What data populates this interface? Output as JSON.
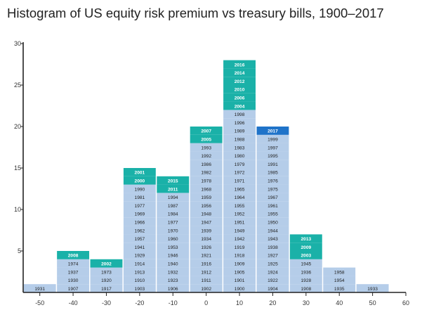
{
  "title": "Histogram of US equity risk premium vs treasury bills, 1900–2017",
  "chart_data": {
    "type": "bar",
    "title": "Histogram of US equity risk premium vs treasury bills, 1900–2017",
    "xlabel": "",
    "ylabel": "",
    "xlim": [
      -55,
      60
    ],
    "ylim": [
      0,
      30
    ],
    "x_ticks": [
      "-50",
      "-40",
      "-30",
      "-20",
      "-10",
      "0",
      "10",
      "20",
      "30",
      "40",
      "50",
      "60"
    ],
    "y_ticks": [
      "5",
      "10",
      "15",
      "20",
      "25",
      "30"
    ],
    "colors": {
      "historical_year": "#b5cde9",
      "this_century_year": "#1ab1a8",
      "latest_year": "#1f73c9"
    },
    "bins": [
      {
        "range": [
          -55,
          -45
        ],
        "years": [
          "1931"
        ]
      },
      {
        "range": [
          -45,
          -35
        ],
        "years": [
          "1907",
          "1930",
          "1937",
          "1974",
          "2008"
        ]
      },
      {
        "range": [
          -35,
          -25
        ],
        "years": [
          "1917",
          "1920",
          "1973",
          "2002"
        ]
      },
      {
        "range": [
          -25,
          -15
        ],
        "years": [
          "1903",
          "1910",
          "1913",
          "1914",
          "1929",
          "1941",
          "1957",
          "1962",
          "1966",
          "1969",
          "1977",
          "1981",
          "1990",
          "2000",
          "2001"
        ]
      },
      {
        "range": [
          -15,
          -5
        ],
        "years": [
          "1906",
          "1923",
          "1932",
          "1940",
          "1946",
          "1953",
          "1960",
          "1970",
          "1977",
          "1984",
          "1987",
          "1994",
          "2011",
          "2015"
        ]
      },
      {
        "range": [
          -5,
          5
        ],
        "years": [
          "1902",
          "1911",
          "1912",
          "1916",
          "1921",
          "1926",
          "1934",
          "1939",
          "1947",
          "1948",
          "1956",
          "1959",
          "1968",
          "1978",
          "1982",
          "1986",
          "1992",
          "1993",
          "2005",
          "2007"
        ]
      },
      {
        "range": [
          5,
          15
        ],
        "years": [
          "1900",
          "1901",
          "1905",
          "1909",
          "1918",
          "1919",
          "1942",
          "1949",
          "1951",
          "1952",
          "1955",
          "1964",
          "1965",
          "1971",
          "1972",
          "1979",
          "1980",
          "1983",
          "1988",
          "1989",
          "1996",
          "1998",
          "2004",
          "2006",
          "2010",
          "2012",
          "2014",
          "2016"
        ]
      },
      {
        "range": [
          15,
          25
        ],
        "years": [
          "1904",
          "1922",
          "1924",
          "1925",
          "1927",
          "1938",
          "1943",
          "1944",
          "1950",
          "1955",
          "1961",
          "1967",
          "1975",
          "1976",
          "1985",
          "1991",
          "1995",
          "1997",
          "1999",
          "2017"
        ]
      },
      {
        "range": [
          25,
          35
        ],
        "years": [
          "1908",
          "1928",
          "1936",
          "1945",
          "2003",
          "2009",
          "2013"
        ]
      },
      {
        "range": [
          35,
          45
        ],
        "years": [
          "1935",
          "1954",
          "1958"
        ]
      },
      {
        "range": [
          45,
          55
        ],
        "years": [
          "1933"
        ]
      }
    ]
  }
}
